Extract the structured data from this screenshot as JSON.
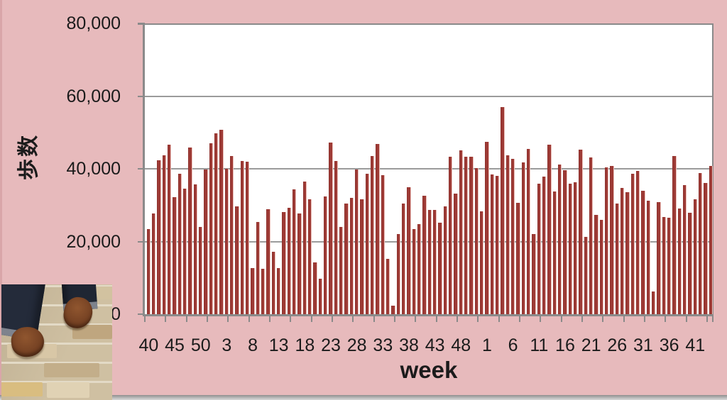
{
  "chart_data": {
    "type": "bar",
    "title": "",
    "xlabel": "week",
    "ylabel": "歩数",
    "ylim": [
      0,
      80000
    ],
    "y_tick_interval": 20000,
    "y_tick_labels": [
      "0",
      "20,000",
      "40,000",
      "60,000",
      "80,000"
    ],
    "x_label_interval": 5,
    "x_shown_labels": [
      "40",
      "45",
      "50",
      "3",
      "8",
      "13",
      "18",
      "23",
      "28",
      "33",
      "38",
      "43",
      "48",
      "1",
      "6",
      "11",
      "16",
      "21",
      "26",
      "31",
      "36",
      "41"
    ],
    "grid": true,
    "legend": "none",
    "series_name": "歩数",
    "weeks": [
      40,
      41,
      42,
      43,
      44,
      45,
      46,
      47,
      48,
      49,
      50,
      51,
      52,
      1,
      2,
      3,
      4,
      5,
      6,
      7,
      8,
      9,
      10,
      11,
      12,
      13,
      14,
      15,
      16,
      17,
      18,
      19,
      20,
      21,
      22,
      23,
      24,
      25,
      26,
      27,
      28,
      29,
      30,
      31,
      32,
      33,
      34,
      35,
      36,
      37,
      38,
      39,
      40,
      41,
      42,
      43,
      44,
      45,
      46,
      47,
      48,
      49,
      50,
      51,
      52,
      1,
      2,
      3,
      4,
      5,
      6,
      7,
      8,
      9,
      10,
      11,
      12,
      13,
      14,
      15,
      16,
      17,
      18,
      19,
      20,
      21,
      22,
      23,
      24,
      25,
      26,
      27,
      28,
      29,
      30,
      31,
      32,
      33,
      34,
      35,
      36,
      37,
      38,
      39,
      40,
      41,
      42,
      43,
      44
    ],
    "values": [
      23400,
      27700,
      42300,
      43800,
      46700,
      32200,
      38700,
      34500,
      45900,
      35800,
      24000,
      39800,
      47000,
      49800,
      50700,
      40000,
      43500,
      29600,
      42200,
      41900,
      12700,
      25300,
      12400,
      28900,
      17200,
      12700,
      28100,
      29200,
      34400,
      27700,
      36400,
      31600,
      14200,
      9700,
      32300,
      47300,
      42100,
      24100,
      30400,
      32000,
      39800,
      31600,
      38700,
      43600,
      46800,
      38200,
      15300,
      2300,
      22000,
      30500,
      34900,
      23400,
      24700,
      32500,
      28600,
      28600,
      25100,
      29700,
      43300,
      33200,
      45100,
      43400,
      43400,
      40200,
      28300,
      47400,
      38400,
      38100,
      57000,
      43800,
      42700,
      30600,
      41700,
      45400,
      22100,
      35900,
      37800,
      46700,
      33800,
      41200,
      39700,
      36000,
      36200,
      45300,
      21200,
      43200,
      27400,
      26000,
      40400,
      40800,
      30500,
      34800,
      33500,
      38700,
      39500,
      34000,
      31200,
      6200,
      30900,
      26800,
      26500,
      43500,
      29100,
      35500,
      28000,
      31600,
      38900,
      36100,
      40700
    ]
  },
  "colors": {
    "background_pink": "#e7babc",
    "bar_fill": "#9d3a35",
    "plot_background": "#ffffff",
    "grid_gray": "#9b9b9b",
    "axis_gray": "#8a8a8a",
    "text": "#1b1b1b"
  },
  "photo": {
    "description": "feet in dark jeans and brown leather shoes standing on beige brick pavement"
  }
}
